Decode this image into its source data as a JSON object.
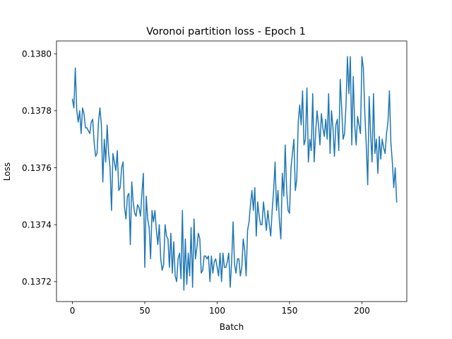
{
  "chart_data": {
    "type": "line",
    "title": "Voronoi partition loss - Epoch 1",
    "xlabel": "Batch",
    "ylabel": "Loss",
    "xlim": [
      -11,
      231
    ],
    "ylim": [
      0.13713,
      0.138045
    ],
    "xticks": [
      0,
      50,
      100,
      150,
      200
    ],
    "yticks": [
      0.1372,
      0.1374,
      0.1376,
      0.1378,
      0.138
    ],
    "ytick_labels": [
      "0.1372",
      "0.1374",
      "0.1376",
      "0.1378",
      "0.1380"
    ],
    "grid": false,
    "line_color": "#1f77b4",
    "series": [
      {
        "x_start": 0,
        "values": [
          0.13784,
          0.13781,
          0.13795,
          0.1378,
          0.13776,
          0.1378,
          0.13772,
          0.13781,
          0.13779,
          0.13774,
          0.13774,
          0.13773,
          0.13772,
          0.13776,
          0.13777,
          0.13769,
          0.13764,
          0.13765,
          0.13776,
          0.13781,
          0.13775,
          0.13755,
          0.1377,
          0.13762,
          0.13775,
          0.13765,
          0.1376,
          0.13745,
          0.13765,
          0.13762,
          0.13759,
          0.13766,
          0.13752,
          0.13753,
          0.1376,
          0.13762,
          0.13746,
          0.13742,
          0.1375,
          0.13751,
          0.13733,
          0.13755,
          0.13748,
          0.13744,
          0.13743,
          0.13747,
          0.13746,
          0.13743,
          0.13751,
          0.13758,
          0.13725,
          0.1375,
          0.13742,
          0.13739,
          0.13728,
          0.13745,
          0.13741,
          0.13745,
          0.13738,
          0.13733,
          0.1374,
          0.13728,
          0.13724,
          0.13726,
          0.1374,
          0.13736,
          0.13735,
          0.13725,
          0.13737,
          0.13723,
          0.13734,
          0.13722,
          0.1372,
          0.13728,
          0.1373,
          0.13721,
          0.13745,
          0.13717,
          0.13735,
          0.13719,
          0.1373,
          0.13722,
          0.13739,
          0.13718,
          0.13742,
          0.13728,
          0.13732,
          0.13737,
          0.13735,
          0.13723,
          0.13724,
          0.13729,
          0.13729,
          0.13728,
          0.13729,
          0.1372,
          0.13729,
          0.13723,
          0.13727,
          0.13728,
          0.13725,
          0.13722,
          0.1373,
          0.1372,
          0.1373,
          0.13725,
          0.13725,
          0.13727,
          0.1373,
          0.13718,
          0.13727,
          0.13741,
          0.13726,
          0.13723,
          0.13728,
          0.13728,
          0.13722,
          0.13725,
          0.13735,
          0.13731,
          0.13722,
          0.13738,
          0.13741,
          0.13747,
          0.13752,
          0.13745,
          0.13753,
          0.13736,
          0.13748,
          0.13743,
          0.1374,
          0.1374,
          0.13748,
          0.13743,
          0.13738,
          0.13745,
          0.1374,
          0.13736,
          0.13745,
          0.13752,
          0.13762,
          0.13745,
          0.13752,
          0.13741,
          0.13735,
          0.13758,
          0.1375,
          0.13768,
          0.13752,
          0.13745,
          0.13744,
          0.1376,
          0.13765,
          0.1377,
          0.13752,
          0.13756,
          0.13776,
          0.13782,
          0.13775,
          0.13787,
          0.13768,
          0.1377,
          0.13788,
          0.13762,
          0.1377,
          0.13766,
          0.13786,
          0.13762,
          0.13772,
          0.1378,
          0.13775,
          0.13768,
          0.13779,
          0.13774,
          0.13771,
          0.13777,
          0.1377,
          0.13786,
          0.13765,
          0.1378,
          0.13774,
          0.13764,
          0.13775,
          0.13777,
          0.13766,
          0.13791,
          0.13781,
          0.1377,
          0.13772,
          0.13782,
          0.13799,
          0.13786,
          0.13799,
          0.13768,
          0.13792,
          0.13775,
          0.13768,
          0.13778,
          0.13775,
          0.13772,
          0.13799,
          0.13795,
          0.13779,
          0.13768,
          0.13754,
          0.13785,
          0.13772,
          0.13762,
          0.13786,
          0.13765,
          0.1377,
          0.13758,
          0.13771,
          0.13763,
          0.1377,
          0.13767,
          0.13765,
          0.13772,
          0.13776,
          0.13787,
          0.13769,
          0.13762,
          0.13753,
          0.1376,
          0.13748
        ]
      }
    ]
  }
}
